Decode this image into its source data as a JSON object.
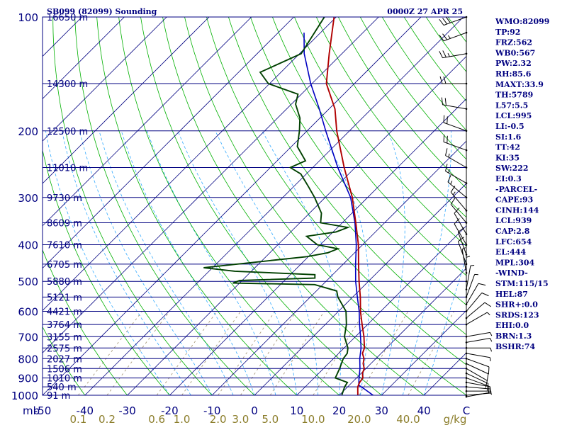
{
  "header": {
    "station": "SB099 (82099) Sounding",
    "valid_time": "0000Z 27 APR 25"
  },
  "colors": {
    "frame": "#000080",
    "isobar": "#000080",
    "isotherm": "#000080",
    "dry_adiabat": "#00b000",
    "moist_adiabat": "#33aaff",
    "mixing_ratio": "#a89a7a",
    "temperature": "#b00000",
    "dewpoint": "#004000",
    "parcel": "#0000c0",
    "mr_labels": "#8b7d2a"
  },
  "indices": [
    "WMO:82099",
    "TP:92",
    "FRZ:562",
    "WB0:567",
    "PW:2.32",
    "RH:85.6",
    "MAXT:33.9",
    "TH:5789",
    "L57:5.5",
    "LCL:995",
    "LI:-0.5",
    "SI:1.6",
    "TT:42",
    "KI:35",
    "SW:222",
    "EI:0.3",
    "-PARCEL-",
    "CAPE:93",
    "CINH:144",
    "LCL:939",
    "CAP:2.8",
    "LFC:654",
    "EL:444",
    "MPL:304",
    "-WIND-",
    "STM:115/15",
    "HEL:87",
    "SHR+:0.0",
    "SRDS:123",
    "EHI:0.0",
    "BRN:1.3",
    "BSHR:74"
  ],
  "chart_data": {
    "type": "skew-t",
    "pressure_axis_label": "mb",
    "pressure_ticks": [
      100,
      200,
      300,
      400,
      500,
      600,
      700,
      800,
      900,
      1000
    ],
    "temperature_ticks": [
      "-50",
      "-40",
      "-30",
      "-20",
      "-10",
      "0",
      "10",
      "20",
      "30",
      "40",
      "C"
    ],
    "temperature_range": [
      -50,
      50
    ],
    "pressure_range": [
      100,
      1000
    ],
    "mixing_ratio_ticks": [
      "0.1",
      "0.2",
      "0.6",
      "1.0",
      "2.0",
      "3.0",
      "5.0",
      "10.0",
      "20.0",
      "40.0",
      "g/kg"
    ],
    "mixing_ratio_values": [
      0.1,
      0.2,
      0.6,
      1.0,
      2.0,
      3.0,
      5.0,
      10.0,
      20.0,
      40.0
    ],
    "isobars": [
      {
        "p": 100,
        "height": "16650 m"
      },
      {
        "p": 150,
        "height": "14300 m"
      },
      {
        "p": 200,
        "height": "12500 m"
      },
      {
        "p": 250,
        "height": "11010 m"
      },
      {
        "p": 300,
        "height": "9730 m"
      },
      {
        "p": 350,
        "height": "8609 m"
      },
      {
        "p": 400,
        "height": "7610 m"
      },
      {
        "p": 450,
        "height": "6705 m"
      },
      {
        "p": 500,
        "height": "5880 m"
      },
      {
        "p": 550,
        "height": "5121 m"
      },
      {
        "p": 600,
        "height": "4421 m"
      },
      {
        "p": 650,
        "height": "3764 m"
      },
      {
        "p": 700,
        "height": "3155 m"
      },
      {
        "p": 750,
        "height": "2575 m"
      },
      {
        "p": 800,
        "height": "2027 m"
      },
      {
        "p": 850,
        "height": "1506 m"
      },
      {
        "p": 900,
        "height": "1010 m"
      },
      {
        "p": 950,
        "height": "540 m"
      },
      {
        "p": 1000,
        "height": "91 m"
      }
    ],
    "temperature_profile": [
      [
        1009,
        24.6
      ],
      [
        1000,
        24.4
      ],
      [
        975,
        23.4
      ],
      [
        950,
        22.4
      ],
      [
        925,
        21.8
      ],
      [
        900,
        21.5
      ],
      [
        875,
        20.3
      ],
      [
        850,
        19.6
      ],
      [
        825,
        18.2
      ],
      [
        800,
        17.2
      ],
      [
        775,
        15.6
      ],
      [
        750,
        14.8
      ],
      [
        700,
        12.0
      ],
      [
        650,
        8.7
      ],
      [
        600,
        5.2
      ],
      [
        550,
        1.8
      ],
      [
        500,
        -2.2
      ],
      [
        450,
        -6.4
      ],
      [
        400,
        -11.0
      ],
      [
        350,
        -16.8
      ],
      [
        300,
        -23.6
      ],
      [
        250,
        -32.6
      ],
      [
        200,
        -43.0
      ],
      [
        175,
        -48.6
      ],
      [
        150,
        -56.6
      ],
      [
        125,
        -63.0
      ],
      [
        100,
        -70.5
      ]
    ],
    "dewpoint_profile": [
      [
        1009,
        21.6
      ],
      [
        1000,
        20.6
      ],
      [
        950,
        19.3
      ],
      [
        925,
        18.9
      ],
      [
        900,
        15.0
      ],
      [
        850,
        13.8
      ],
      [
        800,
        12.3
      ],
      [
        775,
        12.0
      ],
      [
        750,
        10.9
      ],
      [
        700,
        7.4
      ],
      [
        650,
        5.0
      ],
      [
        600,
        1.8
      ],
      [
        550,
        -3.5
      ],
      [
        530,
        -5.2
      ],
      [
        510,
        -11.9
      ],
      [
        505,
        -31.6
      ],
      [
        497,
        -30.6
      ],
      [
        490,
        -13.4
      ],
      [
        480,
        -14.2
      ],
      [
        470,
        -33.9
      ],
      [
        460,
        -42.1
      ],
      [
        430,
        -20.3
      ],
      [
        420,
        -16.3
      ],
      [
        410,
        -14.9
      ],
      [
        400,
        -20.7
      ],
      [
        380,
        -25.2
      ],
      [
        370,
        -19.3
      ],
      [
        360,
        -17.6
      ],
      [
        350,
        -25.1
      ],
      [
        330,
        -27.2
      ],
      [
        300,
        -32.5
      ],
      [
        280,
        -36.7
      ],
      [
        260,
        -41.3
      ],
      [
        250,
        -45.3
      ],
      [
        240,
        -43.3
      ],
      [
        220,
        -48.6
      ],
      [
        200,
        -51.8
      ],
      [
        185,
        -54.7
      ],
      [
        170,
        -59.0
      ],
      [
        160,
        -60.8
      ],
      [
        150,
        -70.3
      ],
      [
        140,
        -74.9
      ],
      [
        125,
        -69.6
      ],
      [
        100,
        -72.8
      ]
    ],
    "parcel_profile": [
      [
        1009,
        29.0
      ],
      [
        1000,
        28.0
      ],
      [
        960,
        24.2
      ],
      [
        940,
        22.2
      ],
      [
        900,
        20.6
      ],
      [
        850,
        18.6
      ],
      [
        800,
        16.2
      ],
      [
        750,
        14.0
      ],
      [
        700,
        11.2
      ],
      [
        650,
        8.1
      ],
      [
        600,
        4.9
      ],
      [
        550,
        1.1
      ],
      [
        500,
        -3.0
      ],
      [
        450,
        -7.1
      ],
      [
        400,
        -11.5
      ],
      [
        350,
        -17.0
      ],
      [
        300,
        -24.0
      ],
      [
        250,
        -34.1
      ],
      [
        200,
        -45.6
      ],
      [
        175,
        -52.3
      ],
      [
        150,
        -60.3
      ],
      [
        125,
        -68.9
      ],
      [
        110,
        -73.9
      ]
    ],
    "wind_profile": [
      [
        1009,
        80,
        3
      ],
      [
        1000,
        85,
        4
      ],
      [
        975,
        90,
        6
      ],
      [
        950,
        95,
        8
      ],
      [
        925,
        100,
        12
      ],
      [
        900,
        110,
        14
      ],
      [
        875,
        115,
        14
      ],
      [
        850,
        120,
        14
      ],
      [
        825,
        115,
        12
      ],
      [
        800,
        110,
        10
      ],
      [
        775,
        100,
        8
      ],
      [
        750,
        90,
        6
      ],
      [
        725,
        80,
        6
      ],
      [
        700,
        80,
        6
      ],
      [
        650,
        60,
        8
      ],
      [
        625,
        50,
        10
      ],
      [
        600,
        40,
        11
      ],
      [
        575,
        30,
        10
      ],
      [
        550,
        20,
        8
      ],
      [
        525,
        10,
        8
      ],
      [
        500,
        0,
        8
      ],
      [
        475,
        350,
        8
      ],
      [
        450,
        340,
        10
      ],
      [
        425,
        340,
        12
      ],
      [
        400,
        330,
        12
      ],
      [
        375,
        330,
        14
      ],
      [
        350,
        320,
        14
      ],
      [
        325,
        320,
        16
      ],
      [
        300,
        310,
        16
      ],
      [
        275,
        300,
        18
      ],
      [
        250,
        300,
        18
      ],
      [
        225,
        290,
        20
      ],
      [
        200,
        290,
        22
      ],
      [
        175,
        280,
        24
      ],
      [
        150,
        270,
        24
      ],
      [
        125,
        260,
        26
      ],
      [
        110,
        250,
        28
      ],
      [
        100,
        250,
        30
      ]
    ]
  }
}
